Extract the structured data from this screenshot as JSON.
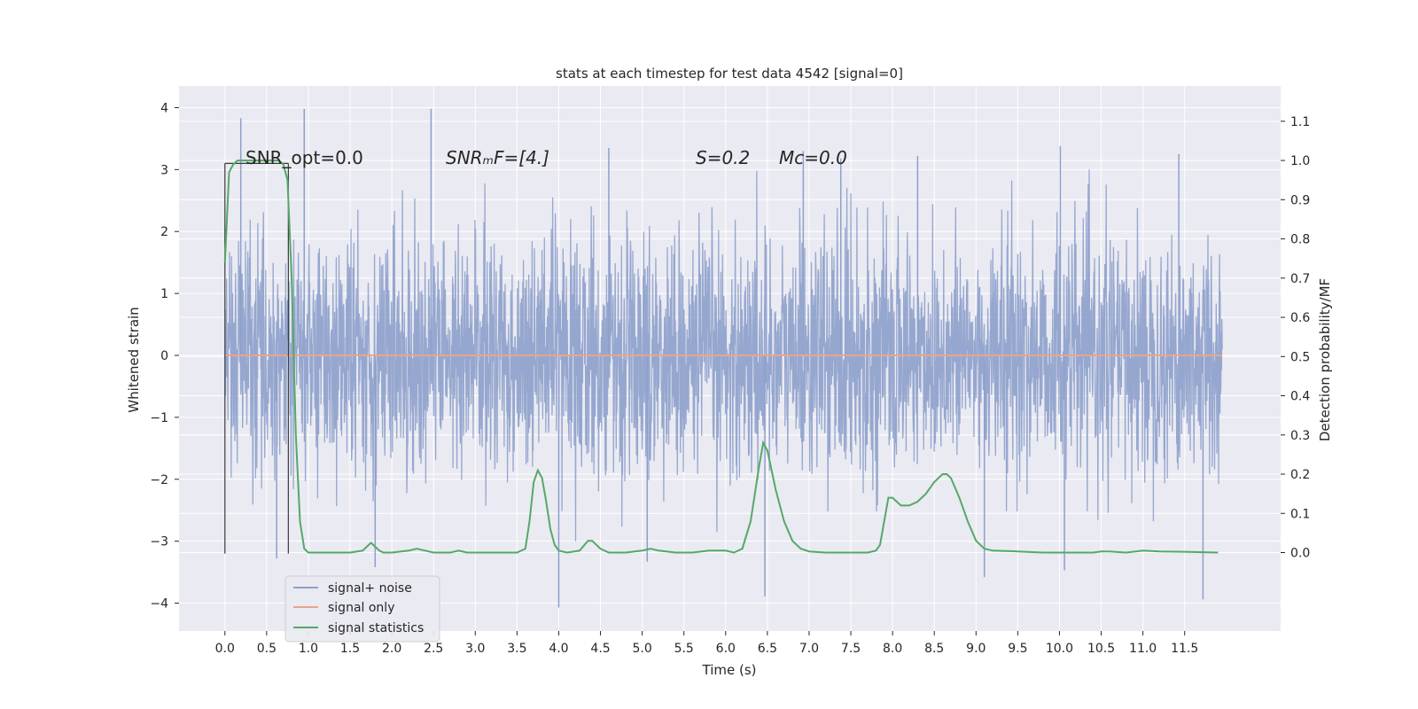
{
  "chart_data": {
    "type": "line",
    "title": "stats at each timestep for test data 4542 [signal=0]",
    "xlabel": "Time (s)",
    "ylabel_left": "Whitened strain",
    "ylabel_right": "Detection probability/MF",
    "xlim": [
      -0.55,
      12.65
    ],
    "ylim_left": [
      -4.45,
      4.35
    ],
    "ylim_right": [
      -0.2,
      1.19
    ],
    "x_ticks": [
      0.0,
      0.5,
      1.0,
      1.5,
      2.0,
      2.5,
      3.0,
      3.5,
      4.0,
      4.5,
      5.0,
      5.5,
      6.0,
      6.5,
      7.0,
      7.5,
      8.0,
      8.5,
      9.0,
      9.5,
      10.0,
      10.5,
      11.0,
      11.5
    ],
    "x_tick_labels": [
      "0.0",
      "0.5",
      "1.0",
      "1.5",
      "2.0",
      "2.5",
      "3.0",
      "3.5",
      "4.0",
      "4.5",
      "5.0",
      "5.5",
      "6.0",
      "6.5",
      "7.0",
      "7.5",
      "8.0",
      "8.5",
      "9.0",
      "9.5",
      "10.0",
      "10.5",
      "11.0",
      "11.5"
    ],
    "y_left_ticks": [
      4,
      3,
      2,
      1,
      0,
      -1,
      -2,
      -3,
      -4
    ],
    "y_left_tick_labels": [
      "4",
      "3",
      "2",
      "1",
      "0",
      "−1",
      "−2",
      "−3",
      "−4"
    ],
    "y_right_ticks": [
      1.1,
      1.0,
      0.9,
      0.8,
      0.7,
      0.6,
      0.5,
      0.4,
      0.3,
      0.2,
      0.1,
      0.0
    ],
    "y_right_tick_labels": [
      "1.1",
      "1.0",
      "0.9",
      "0.8",
      "0.7",
      "0.6",
      "0.5",
      "0.4",
      "0.3",
      "0.2",
      "0.1",
      "0.0"
    ],
    "grid": true,
    "legend_position": "lower-left",
    "series": [
      {
        "name": "signal+ noise",
        "axis": "left",
        "color": "#8da0cb",
        "description_values": "dense noise time series between approx -4.1 and 4.0, sampled over 0 to 11.95 s",
        "x_range": [
          0.0,
          11.95
        ],
        "peaks_high": [
          [
            0.19,
            3.83
          ],
          [
            0.95,
            3.98
          ],
          [
            2.47,
            3.98
          ],
          [
            4.6,
            3.35
          ],
          [
            6.93,
            3.3
          ],
          [
            7.38,
            3.18
          ],
          [
            8.3,
            3.22
          ],
          [
            10.01,
            3.38
          ],
          [
            11.43,
            3.25
          ]
        ],
        "peaks_low": [
          [
            0.62,
            -3.28
          ],
          [
            1.8,
            -3.42
          ],
          [
            4.0,
            -4.07
          ],
          [
            5.06,
            -3.33
          ],
          [
            6.47,
            -3.89
          ],
          [
            9.1,
            -3.58
          ],
          [
            10.06,
            -3.47
          ],
          [
            11.72,
            -3.94
          ]
        ]
      },
      {
        "name": "signal only",
        "axis": "left",
        "color": "#e8a58b",
        "x": [
          0.0,
          11.95
        ],
        "y": [
          0.0,
          0.0
        ]
      },
      {
        "name": "signal statistics",
        "axis": "right",
        "color": "#55a868",
        "x": [
          0.0,
          0.05,
          0.1,
          0.15,
          0.2,
          0.3,
          0.5,
          0.65,
          0.7,
          0.75,
          0.8,
          0.85,
          0.9,
          0.95,
          1.0,
          1.1,
          1.3,
          1.5,
          1.65,
          1.7,
          1.75,
          1.8,
          1.85,
          1.9,
          2.0,
          2.2,
          2.3,
          2.4,
          2.5,
          2.7,
          2.8,
          2.9,
          3.2,
          3.5,
          3.6,
          3.65,
          3.7,
          3.75,
          3.8,
          3.85,
          3.9,
          3.95,
          4.0,
          4.1,
          4.25,
          4.35,
          4.4,
          4.5,
          4.6,
          4.8,
          5.0,
          5.1,
          5.2,
          5.4,
          5.6,
          5.8,
          6.0,
          6.1,
          6.2,
          6.3,
          6.4,
          6.45,
          6.5,
          6.6,
          6.7,
          6.8,
          6.9,
          7.0,
          7.2,
          7.5,
          7.7,
          7.8,
          7.85,
          7.9,
          7.95,
          8.0,
          8.05,
          8.1,
          8.15,
          8.2,
          8.3,
          8.4,
          8.5,
          8.6,
          8.65,
          8.7,
          8.8,
          8.9,
          9.0,
          9.1,
          9.2,
          9.5,
          9.8,
          10.0,
          10.2,
          10.4,
          10.5,
          10.6,
          10.8,
          11.0,
          11.2,
          11.5,
          11.9
        ],
        "y": [
          0.74,
          0.97,
          0.99,
          1.0,
          1.0,
          1.0,
          1.0,
          1.0,
          0.99,
          0.95,
          0.7,
          0.3,
          0.08,
          0.01,
          0.0,
          0.0,
          0.0,
          0.0,
          0.005,
          0.015,
          0.025,
          0.015,
          0.005,
          0.0,
          0.0,
          0.005,
          0.01,
          0.005,
          0.0,
          0.0,
          0.005,
          0.0,
          0.0,
          0.0,
          0.01,
          0.08,
          0.18,
          0.21,
          0.19,
          0.13,
          0.06,
          0.02,
          0.005,
          0.0,
          0.005,
          0.03,
          0.03,
          0.01,
          0.0,
          0.0,
          0.005,
          0.01,
          0.005,
          0.0,
          0.0,
          0.005,
          0.005,
          0.0,
          0.01,
          0.08,
          0.22,
          0.28,
          0.26,
          0.16,
          0.08,
          0.03,
          0.01,
          0.003,
          0.0,
          0.0,
          0.0,
          0.005,
          0.02,
          0.08,
          0.14,
          0.14,
          0.13,
          0.12,
          0.12,
          0.12,
          0.13,
          0.15,
          0.18,
          0.2,
          0.2,
          0.19,
          0.14,
          0.08,
          0.03,
          0.01,
          0.005,
          0.003,
          0.0,
          0.0,
          0.0,
          0.0,
          0.003,
          0.003,
          0.0,
          0.005,
          0.003,
          0.002,
          0.0
        ]
      }
    ],
    "markers": {
      "vertical_lines_x": [
        0.0,
        0.76
      ],
      "vertical_lines_ylim": [
        -3.2,
        3.1
      ],
      "bracket_top_y": 3.1
    },
    "annotations": [
      {
        "text": "SNR_opt=0.0"
      },
      {
        "text": "SNRₘF=[4.]"
      },
      {
        "text": "S=0.2"
      },
      {
        "text": "Mᴄ=0.0"
      }
    ]
  },
  "legend": {
    "items": [
      {
        "label": "signal+ noise",
        "color": "#8da0cb"
      },
      {
        "label": "signal only",
        "color": "#e8a58b"
      },
      {
        "label": "signal statistics",
        "color": "#55a868"
      }
    ]
  },
  "colors": {
    "plot_background": "#eaeaf2",
    "grid": "#ffffff",
    "marker_line": "#3a3a3a"
  }
}
